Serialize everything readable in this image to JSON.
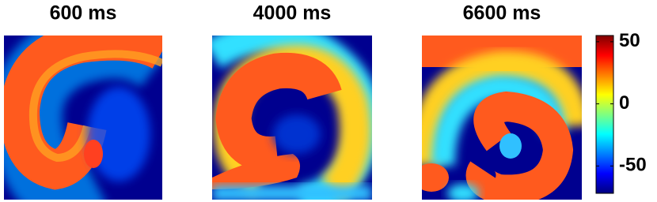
{
  "chart_data": {
    "type": "heatmap",
    "panels": [
      {
        "title": "600 ms"
      },
      {
        "title": "4000 ms"
      },
      {
        "title": "6600 ms"
      }
    ],
    "colormap": "jet",
    "ylim": [
      -72,
      55
    ],
    "yticks": [
      -50,
      0,
      50
    ]
  }
}
